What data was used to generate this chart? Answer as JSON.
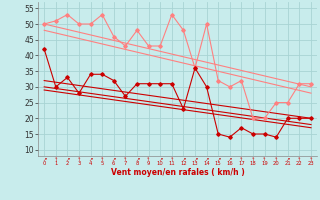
{
  "x": [
    0,
    1,
    2,
    3,
    4,
    5,
    6,
    7,
    8,
    9,
    10,
    11,
    12,
    13,
    14,
    15,
    16,
    17,
    18,
    19,
    20,
    21,
    22,
    23
  ],
  "rafales": [
    50,
    51,
    53,
    50,
    50,
    53,
    46,
    43,
    48,
    43,
    43,
    53,
    48,
    36,
    50,
    32,
    30,
    32,
    20,
    20,
    25,
    25,
    31,
    31
  ],
  "vent_moyen": [
    42,
    30,
    33,
    28,
    34,
    34,
    32,
    27,
    31,
    31,
    31,
    31,
    23,
    36,
    30,
    15,
    14,
    17,
    15,
    15,
    14,
    20,
    20,
    20
  ],
  "trend_rafales1": [
    50,
    30
  ],
  "trend_rafales2": [
    48,
    28
  ],
  "trend_vent1": [
    32,
    20
  ],
  "trend_vent2": [
    30,
    18
  ],
  "trend_vent3": [
    29,
    17
  ],
  "background_color": "#c8ecec",
  "grid_color": "#a8d4d4",
  "line_light": "#ff8080",
  "line_dark": "#cc0000",
  "xlabel": "Vent moyen/en rafales ( km/h )",
  "yticks": [
    10,
    15,
    20,
    25,
    30,
    35,
    40,
    45,
    50,
    55
  ],
  "ylim": [
    8,
    57
  ],
  "xlim": [
    -0.5,
    23.5
  ],
  "arrows": [
    "↗",
    "↑",
    "↗",
    "↑",
    "↗",
    "↑",
    "↗",
    "↑",
    "↗",
    "↑",
    "↗",
    "↑",
    "↗",
    "↗",
    "↗",
    "↗",
    "↗",
    "↑",
    "↑",
    "↑",
    "↑",
    "↗",
    "↑",
    "↑"
  ]
}
